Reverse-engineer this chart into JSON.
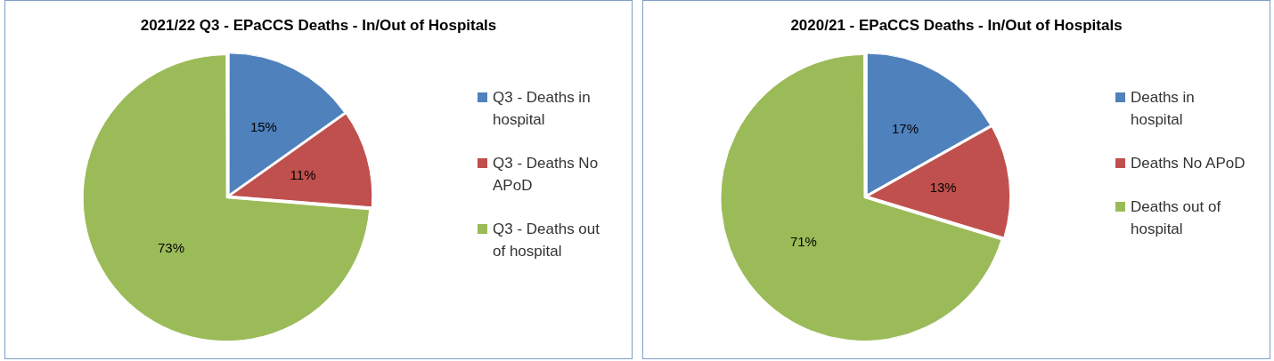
{
  "chart_data": [
    {
      "type": "pie",
      "title": "2021/22 Q3 - EPaCCS Deaths -  In/Out of Hospitals",
      "categories": [
        "Q3 - Deaths in hospital",
        "Q3 - Deaths No APoD",
        "Q3 - Deaths out of hospital"
      ],
      "values": [
        15,
        11,
        73
      ],
      "value_labels": [
        "15%",
        "11%",
        "73%"
      ],
      "colors": [
        "#4f81bd",
        "#c0504d",
        "#9bbb59"
      ],
      "legend": "right"
    },
    {
      "type": "pie",
      "title": "2020/21 - EPaCCS Deaths -  In/Out of Hospitals",
      "categories": [
        "Deaths in hospital",
        "Deaths No APoD",
        "Deaths out of hospital"
      ],
      "values": [
        17,
        13,
        71
      ],
      "value_labels": [
        "17%",
        "13%",
        "71%"
      ],
      "colors": [
        "#4f81bd",
        "#c0504d",
        "#9bbb59"
      ],
      "legend": "right"
    }
  ]
}
